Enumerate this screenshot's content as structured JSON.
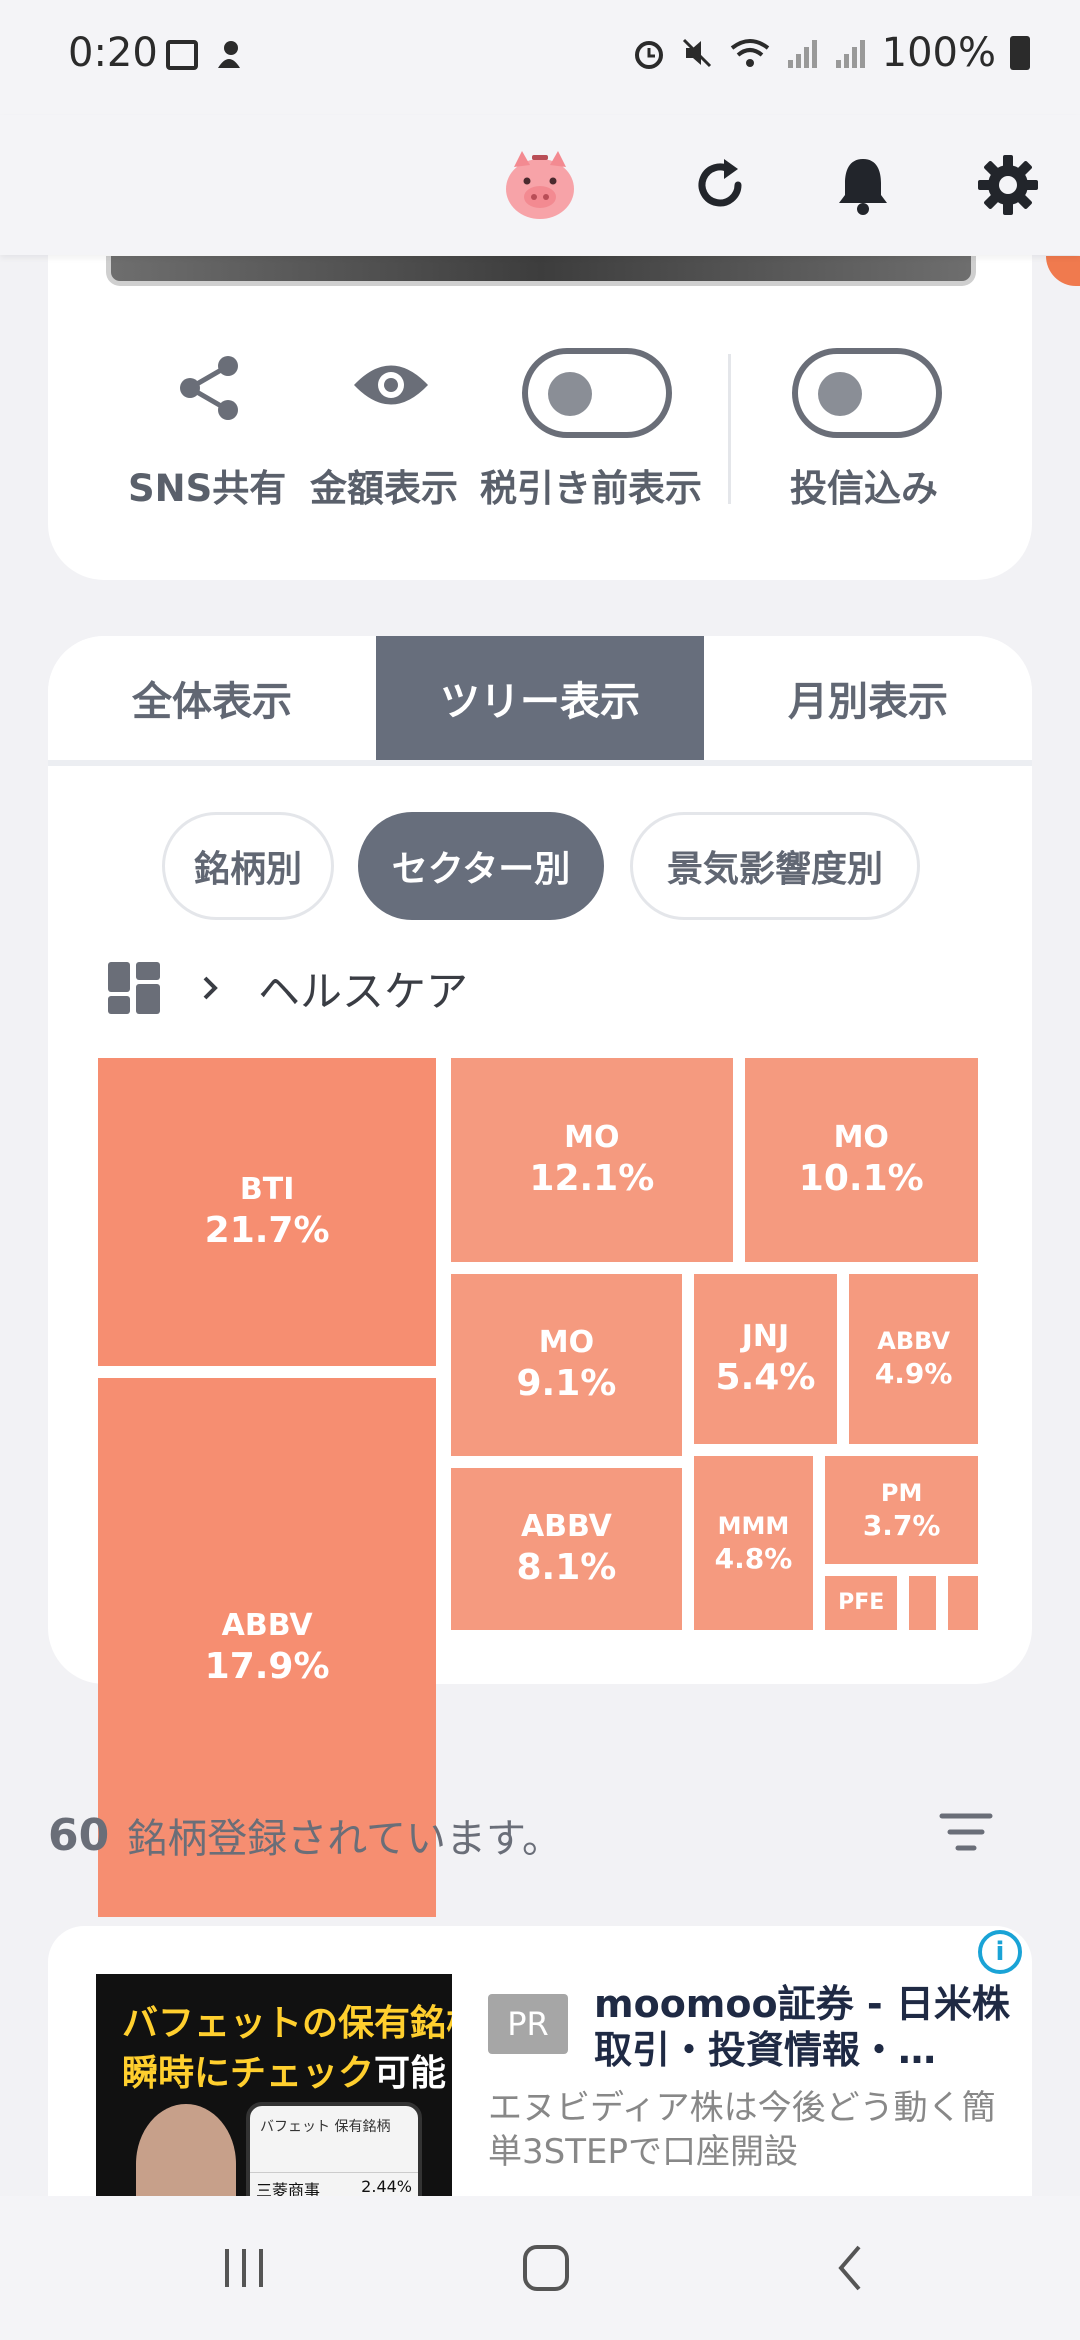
{
  "status_bar": {
    "time": "0:20",
    "battery": "100%"
  },
  "header": {
    "logo_icon": "piggy-bank-icon",
    "icons": [
      "refresh-icon",
      "bell-icon",
      "gear-icon"
    ]
  },
  "controls": {
    "sns_label": "SNS共有",
    "amount_label": "金額表示",
    "pretax_label": "税引き前表示",
    "funds_label": "投信込み"
  },
  "view_tabs": [
    "全体表示",
    "ツリー表示",
    "月別表示"
  ],
  "active_view_tab": 1,
  "chips": [
    "銘柄別",
    "セクター別",
    "景気影響度別"
  ],
  "active_chip": 1,
  "breadcrumb": {
    "current": "ヘルスケア"
  },
  "chart_data": {
    "type": "treemap",
    "color": "#f59a7f",
    "items": [
      {
        "label": "BTI",
        "value": "21.7%"
      },
      {
        "label": "ABBV",
        "value": "17.9%"
      },
      {
        "label": "MO",
        "value": "12.1%"
      },
      {
        "label": "MO",
        "value": "10.1%"
      },
      {
        "label": "MO",
        "value": "9.1%"
      },
      {
        "label": "JNJ",
        "value": "5.4%"
      },
      {
        "label": "ABBV",
        "value": "4.9%"
      },
      {
        "label": "ABBV",
        "value": "8.1%"
      },
      {
        "label": "MMM",
        "value": "4.8%"
      },
      {
        "label": "PM",
        "value": "3.7%"
      },
      {
        "label": "PFE",
        "value": ""
      }
    ]
  },
  "count": {
    "number": "60",
    "text": "銘柄登録されています。"
  },
  "ad": {
    "image_line1a": "バフェットの",
    "image_line1b": "保有銘柄を",
    "image_line2a": "瞬時にチェック",
    "image_line2b": "可能",
    "image_phone_title": "バフェット 保有銘柄",
    "image_row_name": "三菱商事",
    "image_row_value": "2.44%",
    "pr": "PR",
    "title": "moomoo証券 - 日米株取引・投資情報・…",
    "description": "エヌビディア株は今後どう動く簡単3STEPで口座開設"
  }
}
